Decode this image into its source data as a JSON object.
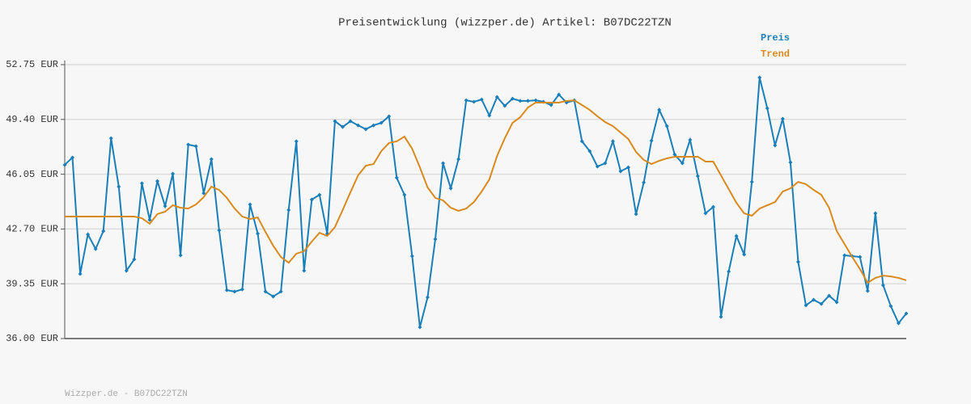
{
  "chart_data": {
    "type": "line",
    "title": "Preisentwicklung (wizzper.de) Artikel: B07DC22TZN",
    "ylim": [
      36.0,
      52.75
    ],
    "yticks": [
      {
        "value": 36.0,
        "label": "36.00 EUR"
      },
      {
        "value": 39.35,
        "label": "39.35 EUR"
      },
      {
        "value": 42.7,
        "label": "42.70 EUR"
      },
      {
        "value": 46.05,
        "label": "46.05 EUR"
      },
      {
        "value": 49.4,
        "label": "49.40 EUR"
      },
      {
        "value": 52.75,
        "label": "52.75 EUR"
      }
    ],
    "grid": true,
    "legend": "top-right",
    "series": [
      {
        "name": "Preis",
        "color": "#1a7fb8",
        "markers": true,
        "values": [
          46.62,
          47.07,
          39.95,
          42.37,
          41.48,
          42.57,
          48.25,
          45.29,
          40.15,
          40.84,
          45.49,
          43.26,
          45.63,
          44.1,
          46.08,
          41.09,
          47.86,
          47.76,
          44.89,
          46.97,
          42.62,
          38.96,
          38.87,
          39.01,
          44.2,
          42.42,
          38.87,
          38.57,
          38.87,
          43.86,
          48.06,
          40.15,
          44.5,
          44.79,
          42.42,
          49.29,
          48.94,
          49.29,
          49.04,
          48.8,
          49.04,
          49.19,
          49.59,
          45.83,
          44.79,
          41.04,
          36.69,
          38.52,
          42.08,
          46.72,
          45.19,
          46.97,
          50.57,
          50.48,
          50.62,
          49.64,
          50.77,
          50.23,
          50.67,
          50.53,
          50.53,
          50.57,
          50.48,
          50.28,
          50.92,
          50.43,
          50.57,
          48.06,
          47.46,
          46.52,
          46.72,
          48.06,
          46.23,
          46.47,
          43.61,
          45.54,
          48.1,
          49.98,
          48.99,
          47.26,
          46.72,
          48.15,
          45.93,
          43.66,
          44.05,
          37.33,
          40.1,
          42.27,
          41.14,
          45.58,
          51.96,
          50.08,
          47.81,
          49.44,
          46.77,
          40.69,
          38.03,
          38.37,
          38.12,
          38.62,
          38.22,
          41.09,
          41.04,
          40.99,
          38.91,
          43.66,
          39.26,
          37.98,
          36.94,
          37.53
        ]
      },
      {
        "name": "Trend",
        "color": "#d98a1f",
        "markers": false,
        "values": [
          43.46,
          43.46,
          43.46,
          43.46,
          43.46,
          43.46,
          43.46,
          43.46,
          43.46,
          43.46,
          43.36,
          43.02,
          43.61,
          43.76,
          44.15,
          44.0,
          43.95,
          44.2,
          44.65,
          45.29,
          45.09,
          44.6,
          43.95,
          43.46,
          43.31,
          43.41,
          42.52,
          41.68,
          40.99,
          40.64,
          41.19,
          41.34,
          41.93,
          42.47,
          42.27,
          42.82,
          43.86,
          44.94,
          45.98,
          46.57,
          46.67,
          47.46,
          47.96,
          48.06,
          48.35,
          47.61,
          46.47,
          45.24,
          44.6,
          44.45,
          44.0,
          43.81,
          43.95,
          44.35,
          44.99,
          45.73,
          47.17,
          48.25,
          49.19,
          49.54,
          50.13,
          50.43,
          50.43,
          50.43,
          50.43,
          50.53,
          50.57,
          50.28,
          49.98,
          49.59,
          49.24,
          48.99,
          48.6,
          48.2,
          47.41,
          46.92,
          46.67,
          46.87,
          47.02,
          47.12,
          47.12,
          47.12,
          47.12,
          46.82,
          46.82,
          45.98,
          45.14,
          44.3,
          43.66,
          43.51,
          43.95,
          44.15,
          44.35,
          44.99,
          45.19,
          45.58,
          45.44,
          45.09,
          44.79,
          44.0,
          42.57,
          41.78,
          40.99,
          40.25,
          39.41,
          39.71,
          39.85,
          39.8,
          39.71,
          39.56
        ]
      }
    ]
  },
  "footer": "Wizzper.de - B07DC22TZN"
}
